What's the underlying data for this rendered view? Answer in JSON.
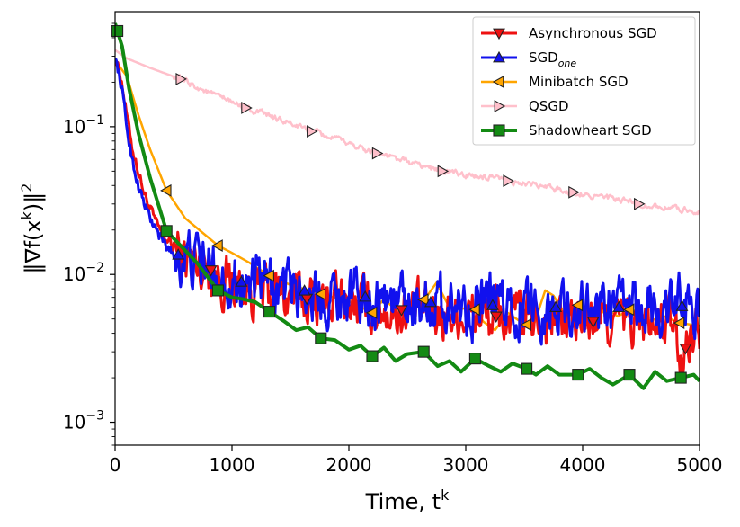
{
  "chart_data": {
    "type": "line",
    "xlabel": "Time, t",
    "xlabel_sup": "k",
    "ylabel": "‖∇f(x",
    "ylabel_sup": "k",
    "ylabel_tail": ")‖",
    "ylabel_tail_sup": "2",
    "xlim": [
      0,
      5000
    ],
    "ylim": [
      0.0007,
      0.6
    ],
    "yscale": "log",
    "x_ticks": [
      0,
      1000,
      2000,
      3000,
      4000,
      5000
    ],
    "x_tick_labels": [
      "0",
      "1000",
      "2000",
      "3000",
      "4000",
      "5000"
    ],
    "y_ticks": [
      {
        "value": 0.1,
        "base": "10",
        "exp": "−1"
      },
      {
        "value": 0.01,
        "base": "10",
        "exp": "−2"
      },
      {
        "value": 0.001,
        "base": "10",
        "exp": "−3"
      }
    ],
    "legend_position": "top-right",
    "series": [
      {
        "name": "Asynchronous SGD",
        "color": "#ee1111",
        "marker": "triangle-down",
        "points": [
          [
            0,
            0.3
          ],
          [
            50,
            0.22
          ],
          [
            100,
            0.12
          ],
          [
            150,
            0.07
          ],
          [
            200,
            0.05
          ],
          [
            250,
            0.035
          ],
          [
            300,
            0.028
          ],
          [
            350,
            0.022
          ],
          [
            400,
            0.019
          ],
          [
            450,
            0.017
          ],
          [
            500,
            0.015
          ],
          [
            550,
            0.014
          ],
          [
            600,
            0.013
          ],
          [
            700,
            0.012
          ],
          [
            800,
            0.011
          ],
          [
            900,
            0.0095
          ],
          [
            1000,
            0.0088
          ],
          [
            1100,
            0.0082
          ],
          [
            1200,
            0.0078
          ],
          [
            1300,
            0.0075
          ],
          [
            1400,
            0.0073
          ],
          [
            1500,
            0.0071
          ],
          [
            1600,
            0.0069
          ],
          [
            1700,
            0.0068
          ],
          [
            1800,
            0.0066
          ],
          [
            1900,
            0.0065
          ],
          [
            2000,
            0.0064
          ],
          [
            2100,
            0.0062
          ],
          [
            2200,
            0.006
          ],
          [
            2300,
            0.0059
          ],
          [
            2400,
            0.0058
          ],
          [
            2500,
            0.0057
          ],
          [
            2600,
            0.0056
          ],
          [
            2700,
            0.0056
          ],
          [
            2800,
            0.0055
          ],
          [
            2900,
            0.0055
          ],
          [
            3000,
            0.0054
          ],
          [
            3100,
            0.0053
          ],
          [
            3200,
            0.0052
          ],
          [
            3300,
            0.0052
          ],
          [
            3400,
            0.0051
          ],
          [
            3500,
            0.005
          ],
          [
            3600,
            0.005
          ],
          [
            3700,
            0.005
          ],
          [
            3800,
            0.0049
          ],
          [
            3900,
            0.0049
          ],
          [
            4000,
            0.0048
          ],
          [
            4100,
            0.0048
          ],
          [
            4200,
            0.0048
          ],
          [
            4300,
            0.0047
          ],
          [
            4400,
            0.0047
          ],
          [
            4500,
            0.0047
          ],
          [
            4600,
            0.0046
          ],
          [
            4700,
            0.0046
          ],
          [
            4750,
            0.0045
          ],
          [
            4800,
            0.0038
          ],
          [
            4850,
            0.0024
          ],
          [
            4900,
            0.0038
          ],
          [
            4950,
            0.0045
          ],
          [
            5000,
            0.0046
          ]
        ],
        "noise": 0.13,
        "markers_at": [
          820,
          1640,
          2450,
          3260,
          4090,
          4880
        ]
      },
      {
        "name": "SGD",
        "name_sub": "one",
        "color": "#1111ee",
        "marker": "triangle-up",
        "points": [
          [
            0,
            0.3
          ],
          [
            50,
            0.2
          ],
          [
            100,
            0.1
          ],
          [
            150,
            0.058
          ],
          [
            200,
            0.04
          ],
          [
            250,
            0.03
          ],
          [
            300,
            0.024
          ],
          [
            350,
            0.02
          ],
          [
            400,
            0.017
          ],
          [
            450,
            0.015
          ],
          [
            500,
            0.014
          ],
          [
            600,
            0.013
          ],
          [
            700,
            0.012
          ],
          [
            800,
            0.011
          ],
          [
            900,
            0.01
          ],
          [
            1000,
            0.0092
          ],
          [
            1200,
            0.0085
          ],
          [
            1400,
            0.008
          ],
          [
            1600,
            0.0078
          ],
          [
            1800,
            0.0075
          ],
          [
            2000,
            0.0072
          ],
          [
            2200,
            0.007
          ],
          [
            2400,
            0.0068
          ],
          [
            2600,
            0.0066
          ],
          [
            2800,
            0.0064
          ],
          [
            3000,
            0.0063
          ],
          [
            3200,
            0.0062
          ],
          [
            3400,
            0.0061
          ],
          [
            3600,
            0.006
          ],
          [
            3800,
            0.006
          ],
          [
            4000,
            0.006
          ],
          [
            4200,
            0.006
          ],
          [
            4400,
            0.006
          ],
          [
            4600,
            0.006
          ],
          [
            4800,
            0.006
          ],
          [
            5000,
            0.0064
          ]
        ],
        "noise": 0.14,
        "markers_at": [
          540,
          1080,
          1620,
          2140,
          2700,
          3230,
          3770,
          4310,
          4850
        ]
      },
      {
        "name": "Minibatch SGD",
        "color": "#ffa500",
        "marker": "triangle-left",
        "points": [
          [
            0,
            0.28
          ],
          [
            100,
            0.22
          ],
          [
            200,
            0.12
          ],
          [
            300,
            0.07
          ],
          [
            440,
            0.037
          ],
          [
            600,
            0.024
          ],
          [
            880,
            0.0157
          ],
          [
            1000,
            0.014
          ],
          [
            1150,
            0.012
          ],
          [
            1320,
            0.0098
          ],
          [
            1500,
            0.0085
          ],
          [
            1750,
            0.0074
          ],
          [
            2000,
            0.0066
          ],
          [
            2200,
            0.0055
          ],
          [
            2300,
            0.0068
          ],
          [
            2400,
            0.0058
          ],
          [
            2500,
            0.0062
          ],
          [
            2650,
            0.0068
          ],
          [
            2750,
            0.0088
          ],
          [
            2850,
            0.0062
          ],
          [
            2950,
            0.0058
          ],
          [
            3060,
            0.0061
          ],
          [
            3150,
            0.0048
          ],
          [
            3250,
            0.0042
          ],
          [
            3360,
            0.0055
          ],
          [
            3500,
            0.0046
          ],
          [
            3580,
            0.0045
          ],
          [
            3680,
            0.0078
          ],
          [
            3750,
            0.0072
          ],
          [
            3850,
            0.0054
          ],
          [
            3960,
            0.0062
          ],
          [
            4080,
            0.0045
          ],
          [
            4200,
            0.006
          ],
          [
            4300,
            0.0052
          ],
          [
            4420,
            0.0059
          ],
          [
            4550,
            0.0048
          ],
          [
            4700,
            0.0052
          ],
          [
            4830,
            0.0047
          ],
          [
            5000,
            0.0045
          ]
        ],
        "noise": 0,
        "markers_at": [
          440,
          880,
          1320,
          1760,
          2200,
          2640,
          3080,
          3520,
          3960,
          4400,
          4830
        ]
      },
      {
        "name": "QSGD",
        "color": "#ffc0cb",
        "marker": "triangle-right",
        "points": [
          [
            0,
            0.33
          ],
          [
            100,
            0.29
          ],
          [
            300,
            0.25
          ],
          [
            560,
            0.21
          ],
          [
            800,
            0.17
          ],
          [
            1120,
            0.134
          ],
          [
            1400,
            0.112
          ],
          [
            1680,
            0.093
          ],
          [
            2000,
            0.077
          ],
          [
            2240,
            0.066
          ],
          [
            2500,
            0.058
          ],
          [
            2800,
            0.05
          ],
          [
            3100,
            0.046
          ],
          [
            3360,
            0.043
          ],
          [
            3600,
            0.04
          ],
          [
            3920,
            0.036
          ],
          [
            4200,
            0.033
          ],
          [
            4480,
            0.03
          ],
          [
            4750,
            0.028
          ],
          [
            5000,
            0.027
          ]
        ],
        "noise": 0.015,
        "markers_at": [
          560,
          1120,
          1680,
          2240,
          2800,
          3360,
          3920,
          4480
        ]
      },
      {
        "name": "Shadowheart SGD",
        "color": "#138a13",
        "marker": "square",
        "points": [
          [
            0,
            0.5
          ],
          [
            60,
            0.35
          ],
          [
            120,
            0.18
          ],
          [
            200,
            0.09
          ],
          [
            300,
            0.045
          ],
          [
            440,
            0.0197
          ],
          [
            550,
            0.016
          ],
          [
            700,
            0.012
          ],
          [
            880,
            0.0078
          ],
          [
            1000,
            0.007
          ],
          [
            1100,
            0.0068
          ],
          [
            1200,
            0.0065
          ],
          [
            1320,
            0.0056
          ],
          [
            1450,
            0.0048
          ],
          [
            1550,
            0.0042
          ],
          [
            1650,
            0.0044
          ],
          [
            1760,
            0.0037
          ],
          [
            1880,
            0.0036
          ],
          [
            2000,
            0.0031
          ],
          [
            2100,
            0.0033
          ],
          [
            2200,
            0.0028
          ],
          [
            2300,
            0.0032
          ],
          [
            2400,
            0.0026
          ],
          [
            2500,
            0.0029
          ],
          [
            2640,
            0.003
          ],
          [
            2760,
            0.0024
          ],
          [
            2860,
            0.0026
          ],
          [
            2960,
            0.0022
          ],
          [
            3080,
            0.0027
          ],
          [
            3200,
            0.0024
          ],
          [
            3300,
            0.0022
          ],
          [
            3400,
            0.0025
          ],
          [
            3520,
            0.0023
          ],
          [
            3600,
            0.0021
          ],
          [
            3700,
            0.0024
          ],
          [
            3800,
            0.0021
          ],
          [
            3960,
            0.0021
          ],
          [
            4060,
            0.0023
          ],
          [
            4160,
            0.002
          ],
          [
            4260,
            0.0018
          ],
          [
            4400,
            0.0021
          ],
          [
            4520,
            0.0017
          ],
          [
            4620,
            0.0022
          ],
          [
            4720,
            0.0019
          ],
          [
            4840,
            0.002
          ],
          [
            4950,
            0.0021
          ],
          [
            5000,
            0.0019
          ]
        ],
        "noise": 0,
        "markers_at": [
          20,
          440,
          880,
          1320,
          1760,
          2200,
          2640,
          3080,
          3520,
          3960,
          4400,
          4840
        ]
      }
    ]
  }
}
